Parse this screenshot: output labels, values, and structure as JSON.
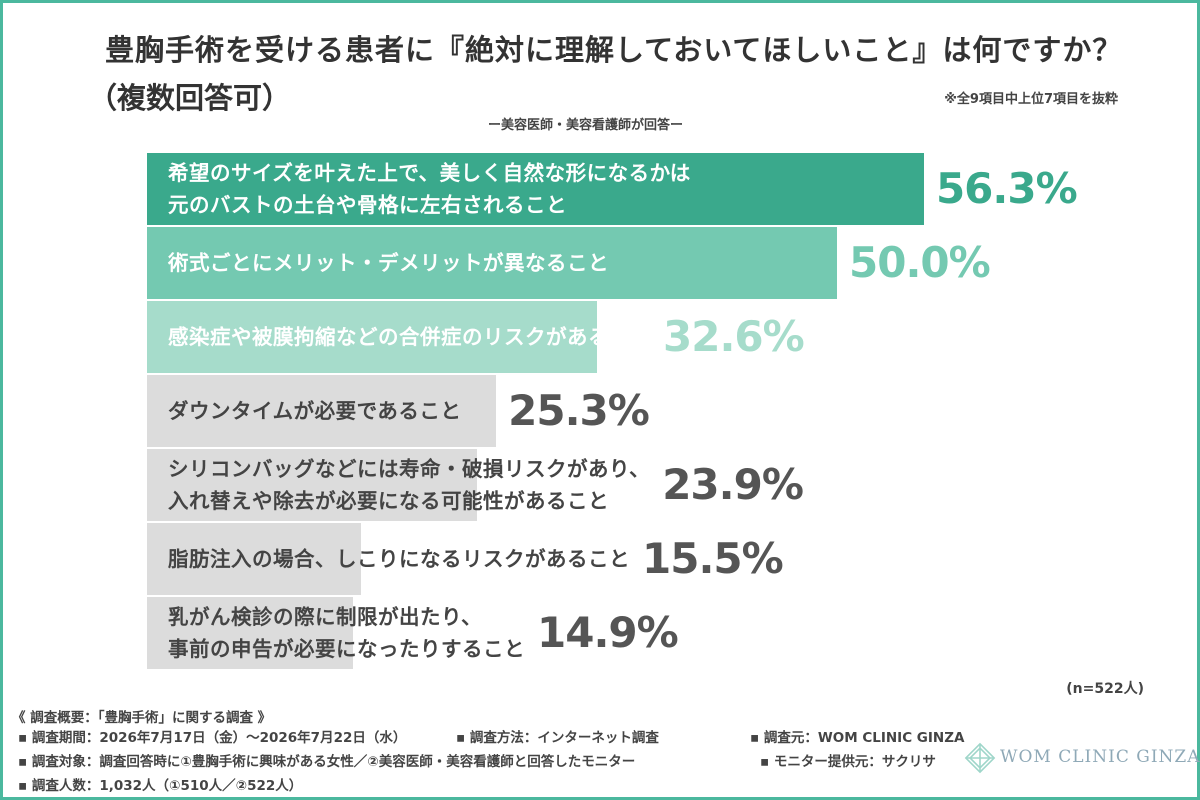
{
  "header": {
    "title": "豊胸手術を受ける患者に『絶対に理解しておいてほしいこと』は何ですか？",
    "subtitle": "（複数回答可）",
    "note": "※全9項目中上位7項目を抜粋",
    "respondent": "ー美容医師・美容看護師が回答ー"
  },
  "chart_data": {
    "type": "bar",
    "orientation": "horizontal",
    "categories": [
      "希望のサイズを叶えた上で、美しく自然な形になるかは\n元のバストの土台や骨格に左右されること",
      "術式ごとにメリット・デメリットが異なること",
      "感染症や被膜拘縮などの合併症のリスクがあること",
      "ダウンタイムが必要であること",
      "シリコンバッグなどには寿命・破損リスクがあり、\n入れ替えや除去が必要になる可能性があること",
      "脂肪注入の場合、しこりになるリスクがあること",
      "乳がん検診の際に制限が出たり、\n事前の申告が必要になったりすること"
    ],
    "values": [
      56.3,
      50.0,
      32.6,
      25.3,
      23.9,
      15.5,
      14.9
    ],
    "value_labels": [
      "56.3%",
      "50.0%",
      "32.6%",
      "25.3%",
      "23.9%",
      "15.5%",
      "14.9%"
    ],
    "n_label": "(n=522人)",
    "colors": {
      "bar": [
        "#3aa98c",
        "#74c9b1",
        "#a6dccb",
        "#dcdcdc",
        "#dcdcdc",
        "#dcdcdc",
        "#dcdcdc"
      ],
      "label": [
        "#ffffff",
        "#ffffff",
        "#ffffff",
        "#444444",
        "#444444",
        "#444444",
        "#444444"
      ],
      "value": [
        "#3aa98c",
        "#74c9b1",
        "#a6dccb",
        "#555555",
        "#555555",
        "#555555",
        "#555555"
      ]
    }
  },
  "footer": {
    "heading": "《 調査概要：「豊胸手術」に関する調査 》",
    "period": "▪ 調査期間：2026年7月17日（金）〜2026年7月22日（水）",
    "method": "▪ 調査方法：インターネット調査",
    "source": "▪ 調査元：WOM CLINIC GINZA",
    "target": "▪ 調査対象：調査回答時に①豊胸手術に興味がある女性／②美容医師・美容看護師と回答したモニター",
    "provider": "▪ モニター提供元：サクリサ",
    "count": "▪ 調査人数：1,032人（①510人／②522人）"
  },
  "logo": {
    "text": "WOM CLINIC GINZA",
    "accent": "#9fd6ca"
  }
}
